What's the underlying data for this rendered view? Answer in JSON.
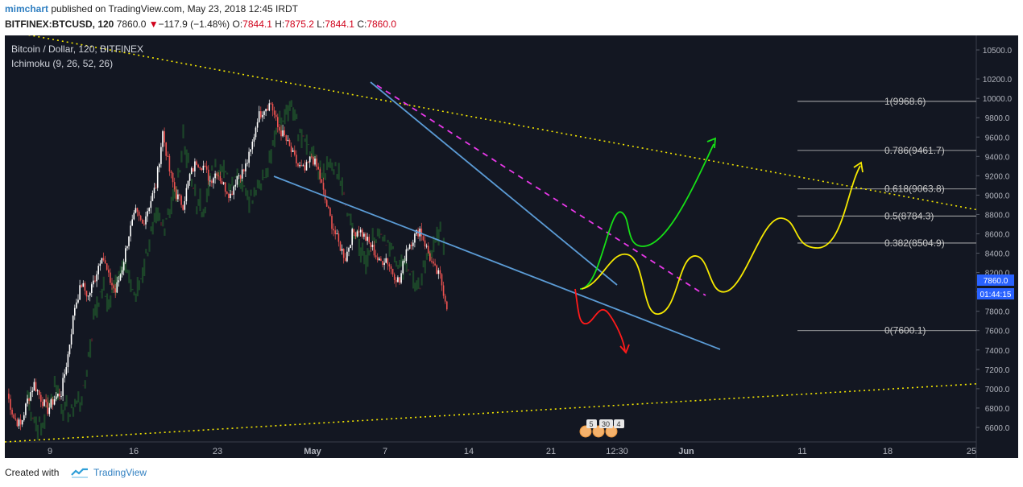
{
  "header": {
    "publisher": "mimchart",
    "published_text": " published on TradingView.com, May 23, 2018 12:45 IRDT",
    "symbol": "BITFINEX:BTCUSD, 120",
    "last": "7860.0",
    "change_arrow": "▼",
    "change": "−117.9 (−1.48%)",
    "o_label": "O:",
    "o_value": "7844.1",
    "h_label": "H:",
    "h_value": "7875.2",
    "l_label": "L:",
    "l_value": "7844.1",
    "c_label": "C:",
    "c_value": "7860.0"
  },
  "legend": {
    "title": "Bitcoin / Dollar, 120, BITFINEX",
    "indicator": "Ichimoku (9, 26, 52, 26)"
  },
  "price_tags": {
    "last_price": "7860.0",
    "countdown": "01:44:15"
  },
  "events": {
    "a": "5",
    "b": "30",
    "c": "4"
  },
  "footer": {
    "created_with": "Created with",
    "brand": "TradingView"
  },
  "colors": {
    "background": "#131722",
    "axis_text": "#b2b5be",
    "candle_up": "#ffffff",
    "candle_down": "#ef5350",
    "trend_blue": "#5b9bd5",
    "magenta_dash": "#e838e8",
    "yellow": "#f5e800",
    "green": "#16e016",
    "red": "#ff1a1a",
    "fib": "#c8c8c8",
    "last_tag": "#2962ff"
  },
  "chart_data": {
    "type": "line",
    "price_scale": {
      "min": 6450,
      "max": 10650,
      "ticks": [
        6600,
        6800,
        7000,
        7200,
        7400,
        7600,
        7800,
        8000,
        8200,
        8400,
        8600,
        8800,
        9000,
        9200,
        9400,
        9600,
        9800,
        10000,
        10200,
        10500
      ],
      "tick_labels": [
        "6600.0",
        "6800.0",
        "7000.0",
        "7200.0",
        "7400.0",
        "7600.0",
        "7800.0",
        "8000.0",
        "8200.0",
        "8400.0",
        "8600.0",
        "8800.0",
        "9000.0",
        "9200.0",
        "9400.0",
        "9600.0",
        "9800.0",
        "10000.0",
        "10200.0",
        "10500.0"
      ]
    },
    "time_scale": {
      "labels": [
        "9",
        "16",
        "23",
        "May",
        "7",
        "14",
        "21",
        "12:30",
        "Jun",
        "11",
        "18",
        "25"
      ]
    },
    "series": [
      {
        "values": [
          [
            0,
            6950
          ],
          [
            2,
            6700
          ],
          [
            4,
            6620
          ],
          [
            6,
            6880
          ],
          [
            8,
            7050
          ],
          [
            10,
            6900
          ],
          [
            12,
            6780
          ],
          [
            14,
            6900
          ],
          [
            16,
            6960
          ],
          [
            18,
            7350
          ],
          [
            20,
            7850
          ],
          [
            22,
            8080
          ],
          [
            24,
            7950
          ],
          [
            26,
            8150
          ],
          [
            28,
            8400
          ],
          [
            30,
            8150
          ],
          [
            32,
            8000
          ],
          [
            34,
            8250
          ],
          [
            36,
            8600
          ],
          [
            38,
            8820
          ],
          [
            40,
            8700
          ],
          [
            42,
            8900
          ],
          [
            44,
            9100
          ],
          [
            46,
            9650
          ],
          [
            48,
            9250
          ],
          [
            50,
            9000
          ],
          [
            52,
            8900
          ],
          [
            54,
            9200
          ],
          [
            56,
            9350
          ],
          [
            58,
            9300
          ],
          [
            60,
            9150
          ],
          [
            62,
            9250
          ],
          [
            64,
            9100
          ],
          [
            66,
            9000
          ],
          [
            68,
            9200
          ],
          [
            70,
            9250
          ],
          [
            72,
            9450
          ],
          [
            74,
            9800
          ],
          [
            76,
            9900
          ],
          [
            78,
            9950
          ],
          [
            80,
            9700
          ],
          [
            82,
            9600
          ],
          [
            84,
            9450
          ],
          [
            86,
            9300
          ],
          [
            88,
            9250
          ],
          [
            90,
            9400
          ],
          [
            92,
            9250
          ],
          [
            94,
            8950
          ],
          [
            96,
            8700
          ],
          [
            98,
            8500
          ],
          [
            100,
            8350
          ],
          [
            102,
            8600
          ],
          [
            104,
            8650
          ],
          [
            106,
            8550
          ],
          [
            108,
            8450
          ],
          [
            110,
            8300
          ],
          [
            112,
            8350
          ],
          [
            114,
            8200
          ],
          [
            116,
            8100
          ],
          [
            118,
            8450
          ],
          [
            120,
            8550
          ],
          [
            122,
            8650
          ],
          [
            124,
            8450
          ],
          [
            126,
            8250
          ],
          [
            128,
            8150
          ],
          [
            130,
            7860
          ]
        ]
      }
    ],
    "trendlines": {
      "upper_dotted": [
        [
          0,
          10700
        ],
        [
          300,
          8850
        ]
      ],
      "lower_dotted": [
        [
          0,
          6450
        ],
        [
          300,
          7050
        ]
      ]
    },
    "fibonacci": [
      {
        "ratio": "1",
        "value": 9968.6,
        "label": "1(9968.6)"
      },
      {
        "ratio": "0.786",
        "value": 9461.7,
        "label": "0.786(9461.7)"
      },
      {
        "ratio": "0.618",
        "value": 9063.8,
        "label": "0.618(9063.8)"
      },
      {
        "ratio": "0.5",
        "value": 8784.3,
        "label": "0.5(8784.3)"
      },
      {
        "ratio": "0.382",
        "value": 8504.9,
        "label": "0.382(8504.9)"
      },
      {
        "ratio": "0",
        "value": 7600.1,
        "label": "0(7600.1)"
      }
    ],
    "last_value": 7860.0
  }
}
